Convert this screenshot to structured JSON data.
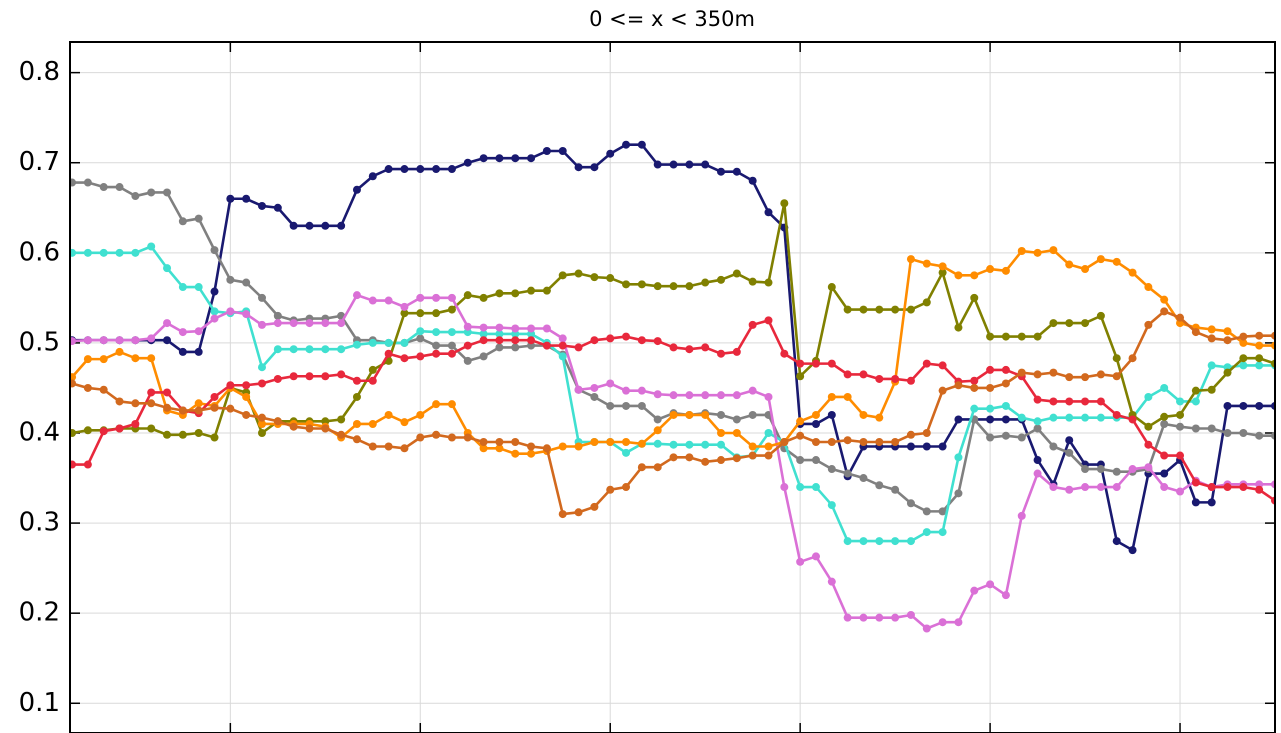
{
  "chart_data": {
    "type": "line",
    "title": "0 <= x < 350m",
    "x": [
      0,
      1,
      2,
      3,
      4,
      5,
      6,
      7,
      8,
      9,
      10,
      11,
      12,
      13,
      14,
      15,
      16,
      17,
      18,
      19,
      20,
      21,
      22,
      23,
      24,
      25,
      26,
      27,
      28,
      29,
      30,
      31,
      32,
      33,
      34,
      35,
      36,
      37,
      38,
      39,
      40,
      41,
      42,
      43,
      44,
      45,
      46,
      47,
      48,
      49,
      50,
      51,
      52,
      53,
      54,
      55,
      56,
      57,
      58,
      59,
      60,
      61,
      62,
      63,
      64,
      65,
      66,
      67,
      68,
      69,
      70,
      71,
      72,
      73,
      74,
      75,
      76
    ],
    "xlim": [
      -0.13,
      76
    ],
    "xticks": [
      10,
      22,
      34,
      46,
      58,
      70
    ],
    "ylim": [
      0.067,
      0.834
    ],
    "yticks": [
      0.1,
      0.2,
      0.3,
      0.4,
      0.5,
      0.6,
      0.7,
      0.8
    ],
    "grid": true,
    "series": [
      {
        "color": "#191970",
        "values": [
          0.503,
          0.503,
          0.503,
          0.503,
          0.503,
          0.503,
          0.503,
          0.49,
          0.49,
          0.557,
          0.66,
          0.66,
          0.652,
          0.65,
          0.63,
          0.63,
          0.63,
          0.63,
          0.67,
          0.685,
          0.693,
          0.693,
          0.693,
          0.693,
          0.693,
          0.7,
          0.705,
          0.705,
          0.705,
          0.705,
          0.713,
          0.713,
          0.695,
          0.695,
          0.71,
          0.72,
          0.72,
          0.698,
          0.698,
          0.698,
          0.698,
          0.69,
          0.69,
          0.68,
          0.645,
          0.628,
          0.41,
          0.41,
          0.42,
          0.352,
          0.385,
          0.385,
          0.385,
          0.385,
          0.385,
          0.385,
          0.415,
          0.415,
          0.415,
          0.415,
          0.415,
          0.37,
          0.343,
          0.392,
          0.365,
          0.365,
          0.28,
          0.27,
          0.355,
          0.355,
          0.37,
          0.323,
          0.323,
          0.43,
          0.43,
          0.43,
          0.43
        ]
      },
      {
        "color": "#808080",
        "values": [
          0.678,
          0.678,
          0.673,
          0.673,
          0.663,
          0.667,
          0.667,
          0.635,
          0.638,
          0.603,
          0.57,
          0.567,
          0.55,
          0.53,
          0.525,
          0.527,
          0.527,
          0.53,
          0.503,
          0.503,
          0.5,
          0.5,
          0.505,
          0.497,
          0.497,
          0.48,
          0.485,
          0.495,
          0.495,
          0.497,
          0.497,
          0.487,
          0.448,
          0.44,
          0.43,
          0.43,
          0.43,
          0.415,
          0.422,
          0.42,
          0.422,
          0.42,
          0.415,
          0.42,
          0.42,
          0.383,
          0.37,
          0.37,
          0.36,
          0.355,
          0.35,
          0.342,
          0.337,
          0.322,
          0.313,
          0.313,
          0.333,
          0.415,
          0.395,
          0.397,
          0.395,
          0.405,
          0.385,
          0.378,
          0.36,
          0.36,
          0.357,
          0.357,
          0.36,
          0.41,
          0.407,
          0.405,
          0.405,
          0.4,
          0.4,
          0.397,
          0.397
        ]
      },
      {
        "color": "#40e0d0",
        "values": [
          0.6,
          0.6,
          0.6,
          0.6,
          0.6,
          0.607,
          0.583,
          0.562,
          0.562,
          0.535,
          0.533,
          0.535,
          0.473,
          0.493,
          0.493,
          0.493,
          0.493,
          0.493,
          0.498,
          0.5,
          0.5,
          0.5,
          0.513,
          0.512,
          0.512,
          0.512,
          0.51,
          0.51,
          0.51,
          0.51,
          0.5,
          0.485,
          0.39,
          0.39,
          0.39,
          0.378,
          0.388,
          0.388,
          0.387,
          0.387,
          0.387,
          0.387,
          0.373,
          0.375,
          0.4,
          0.39,
          0.34,
          0.34,
          0.32,
          0.28,
          0.28,
          0.28,
          0.28,
          0.28,
          0.29,
          0.29,
          0.373,
          0.427,
          0.427,
          0.43,
          0.417,
          0.413,
          0.417,
          0.417,
          0.417,
          0.417,
          0.417,
          0.417,
          0.44,
          0.45,
          0.435,
          0.435,
          0.475,
          0.473,
          0.475,
          0.475,
          0.475
        ]
      },
      {
        "color": "#808000",
        "values": [
          0.4,
          0.403,
          0.403,
          0.405,
          0.405,
          0.405,
          0.398,
          0.398,
          0.4,
          0.395,
          0.45,
          0.445,
          0.4,
          0.413,
          0.413,
          0.413,
          0.413,
          0.415,
          0.44,
          0.47,
          0.48,
          0.533,
          0.533,
          0.533,
          0.537,
          0.553,
          0.55,
          0.555,
          0.555,
          0.558,
          0.558,
          0.575,
          0.577,
          0.573,
          0.572,
          0.565,
          0.565,
          0.563,
          0.563,
          0.563,
          0.567,
          0.57,
          0.577,
          0.568,
          0.567,
          0.655,
          0.463,
          0.48,
          0.562,
          0.537,
          0.537,
          0.537,
          0.537,
          0.537,
          0.545,
          0.578,
          0.517,
          0.55,
          0.507,
          0.507,
          0.507,
          0.507,
          0.522,
          0.522,
          0.522,
          0.53,
          0.483,
          0.42,
          0.407,
          0.418,
          0.42,
          0.447,
          0.448,
          0.467,
          0.483,
          0.483,
          0.477
        ]
      },
      {
        "color": "#da70d6",
        "values": [
          0.502,
          0.503,
          0.503,
          0.503,
          0.503,
          0.505,
          0.522,
          0.512,
          0.513,
          0.527,
          0.535,
          0.532,
          0.52,
          0.522,
          0.522,
          0.522,
          0.522,
          0.522,
          0.553,
          0.547,
          0.547,
          0.54,
          0.55,
          0.55,
          0.55,
          0.518,
          0.517,
          0.517,
          0.516,
          0.516,
          0.516,
          0.505,
          0.448,
          0.45,
          0.455,
          0.447,
          0.447,
          0.443,
          0.442,
          0.442,
          0.442,
          0.442,
          0.442,
          0.447,
          0.44,
          0.34,
          0.257,
          0.263,
          0.235,
          0.195,
          0.195,
          0.195,
          0.195,
          0.198,
          0.183,
          0.19,
          0.19,
          0.225,
          0.232,
          0.22,
          0.308,
          0.355,
          0.34,
          0.337,
          0.34,
          0.34,
          0.34,
          0.36,
          0.362,
          0.34,
          0.335,
          0.347,
          0.34,
          0.343,
          0.343,
          0.343,
          0.343
        ]
      },
      {
        "color": "#ff8c00",
        "values": [
          0.462,
          0.482,
          0.482,
          0.49,
          0.483,
          0.483,
          0.425,
          0.42,
          0.433,
          0.43,
          0.45,
          0.44,
          0.41,
          0.41,
          0.41,
          0.41,
          0.407,
          0.395,
          0.41,
          0.41,
          0.42,
          0.412,
          0.42,
          0.432,
          0.432,
          0.4,
          0.383,
          0.383,
          0.377,
          0.377,
          0.38,
          0.385,
          0.385,
          0.39,
          0.39,
          0.39,
          0.388,
          0.403,
          0.42,
          0.42,
          0.42,
          0.4,
          0.4,
          0.385,
          0.385,
          0.39,
          0.413,
          0.42,
          0.44,
          0.44,
          0.42,
          0.417,
          0.457,
          0.593,
          0.588,
          0.585,
          0.575,
          0.575,
          0.582,
          0.58,
          0.602,
          0.6,
          0.603,
          0.587,
          0.582,
          0.593,
          0.59,
          0.578,
          0.562,
          0.548,
          0.522,
          0.517,
          0.515,
          0.513,
          0.5,
          0.497,
          0.497
        ]
      },
      {
        "color": "#e8283c",
        "values": [
          0.365,
          0.365,
          0.402,
          0.405,
          0.41,
          0.445,
          0.445,
          0.425,
          0.422,
          0.44,
          0.453,
          0.453,
          0.455,
          0.46,
          0.463,
          0.463,
          0.463,
          0.465,
          0.458,
          0.458,
          0.488,
          0.483,
          0.485,
          0.488,
          0.488,
          0.497,
          0.503,
          0.503,
          0.503,
          0.503,
          0.497,
          0.497,
          0.495,
          0.503,
          0.505,
          0.507,
          0.503,
          0.502,
          0.495,
          0.493,
          0.495,
          0.488,
          0.49,
          0.52,
          0.525,
          0.488,
          0.477,
          0.477,
          0.477,
          0.465,
          0.465,
          0.46,
          0.46,
          0.458,
          0.477,
          0.475,
          0.457,
          0.458,
          0.47,
          0.47,
          0.463,
          0.437,
          0.435,
          0.435,
          0.435,
          0.435,
          0.42,
          0.415,
          0.387,
          0.375,
          0.375,
          0.345,
          0.34,
          0.34,
          0.34,
          0.337,
          0.325
        ]
      },
      {
        "color": "#d2691e",
        "values": [
          0.455,
          0.45,
          0.448,
          0.435,
          0.433,
          0.433,
          0.428,
          0.425,
          0.425,
          0.428,
          0.427,
          0.42,
          0.417,
          0.413,
          0.407,
          0.405,
          0.405,
          0.398,
          0.393,
          0.385,
          0.385,
          0.383,
          0.395,
          0.398,
          0.395,
          0.395,
          0.39,
          0.39,
          0.39,
          0.385,
          0.383,
          0.31,
          0.312,
          0.318,
          0.337,
          0.34,
          0.362,
          0.362,
          0.373,
          0.373,
          0.368,
          0.37,
          0.372,
          0.375,
          0.375,
          0.39,
          0.397,
          0.39,
          0.39,
          0.392,
          0.39,
          0.39,
          0.39,
          0.398,
          0.4,
          0.447,
          0.453,
          0.45,
          0.45,
          0.455,
          0.467,
          0.465,
          0.467,
          0.462,
          0.462,
          0.465,
          0.463,
          0.483,
          0.52,
          0.535,
          0.528,
          0.512,
          0.505,
          0.503,
          0.507,
          0.508,
          0.508
        ]
      }
    ]
  }
}
